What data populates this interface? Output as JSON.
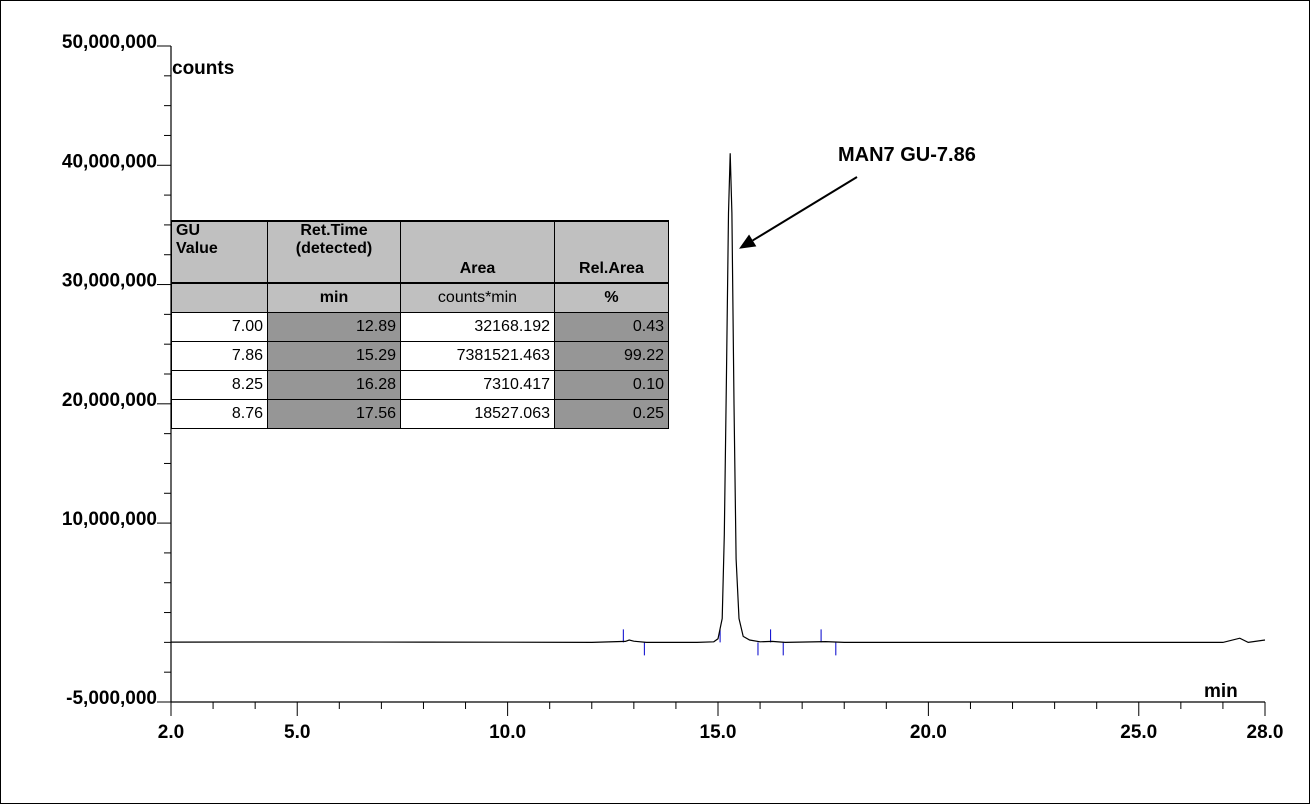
{
  "chart_data": {
    "type": "line",
    "title": "",
    "xlabel": "min",
    "ylabel": "counts",
    "xlim": [
      2.0,
      28.0
    ],
    "ylim": [
      -5000000,
      50000000
    ],
    "xticks": [
      2.0,
      5.0,
      10.0,
      15.0,
      20.0,
      25.0,
      28.0
    ],
    "xtick_labels": [
      "2.0",
      "5.0",
      "10.0",
      "15.0",
      "20.0",
      "25.0",
      "28.0"
    ],
    "yticks": [
      -5000000,
      10000000,
      20000000,
      30000000,
      40000000,
      50000000
    ],
    "ytick_labels": [
      "-5,000,000",
      "10,000,000",
      "20,000,000",
      "30,000,000",
      "40,000,000",
      "50,000,000"
    ],
    "grid": false,
    "series": [
      {
        "color": "#000000",
        "x": [
          2.0,
          5.0,
          8.0,
          10.0,
          12.0,
          12.8,
          12.89,
          13.0,
          13.3,
          14.5,
          14.9,
          15.0,
          15.1,
          15.15,
          15.2,
          15.25,
          15.29,
          15.33,
          15.38,
          15.43,
          15.5,
          15.6,
          15.75,
          16.0,
          16.28,
          16.6,
          17.56,
          18.0,
          20.0,
          25.0,
          27.0,
          27.4,
          27.6,
          28.0
        ],
        "y": [
          20000,
          30000,
          20000,
          10000,
          0,
          80000,
          200000,
          100000,
          0,
          0,
          50000,
          300000,
          2000000,
          9000000,
          22000000,
          36000000,
          41000000,
          36000000,
          20000000,
          7000000,
          2000000,
          500000,
          200000,
          50000,
          80000,
          0,
          60000,
          0,
          0,
          0,
          0,
          350000,
          0,
          200000
        ]
      }
    ],
    "peak_markers": [
      12.75,
      13.25,
      15.05,
      15.95,
      16.25,
      16.55,
      17.45,
      17.8
    ],
    "annotation": "MAN7 GU-7.86",
    "annotation_target": {
      "x": 15.5,
      "y": 33000000
    },
    "colors": {
      "trace": "#000000",
      "markers": "#0000cc",
      "table_header": "#c0c0c0",
      "table_shade": "#969696"
    }
  },
  "table": {
    "headers": [
      {
        "top": [
          "GU",
          "Value"
        ],
        "unit": ""
      },
      {
        "top": [
          "Ret.Time",
          "(detected)"
        ],
        "unit": "min"
      },
      {
        "top": [
          "Area"
        ],
        "unit": "counts*min"
      },
      {
        "top": [
          "Rel.Area"
        ],
        "unit": "%"
      }
    ],
    "rows": [
      [
        "7.00",
        "12.89",
        "32168.192",
        "0.43"
      ],
      [
        "7.86",
        "15.29",
        "7381521.463",
        "99.22"
      ],
      [
        "8.25",
        "16.28",
        "7310.417",
        "0.10"
      ],
      [
        "8.76",
        "17.56",
        "18527.063",
        "0.25"
      ]
    ]
  }
}
